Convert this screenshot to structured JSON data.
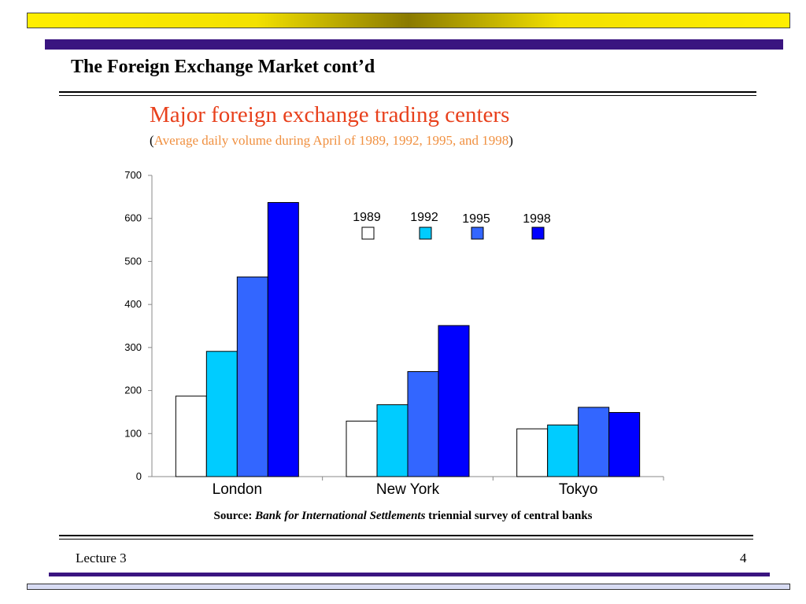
{
  "slide": {
    "title": "The Foreign Exchange Market cont’d",
    "footer_left": "Lecture 3",
    "page_number": "4"
  },
  "chart_heading": {
    "title": "Major foreign exchange trading centers",
    "subtitle_open": "(",
    "subtitle_text": "Average daily volume during April of 1989, 1992, 1995, and 1998",
    "subtitle_close": ")"
  },
  "source": {
    "prefix": "Source: ",
    "publication": "Bank for International Settlements",
    "suffix": " triennial survey of central banks"
  },
  "chart_data": {
    "type": "bar",
    "categories": [
      "London",
      "New York",
      "Tokyo"
    ],
    "series": [
      {
        "name": "1989",
        "color": "#ffffff",
        "values": [
          187,
          129,
          111
        ]
      },
      {
        "name": "1992",
        "color": "#00ccff",
        "values": [
          291,
          167,
          120
        ]
      },
      {
        "name": "1995",
        "color": "#3366ff",
        "values": [
          464,
          244,
          161
        ]
      },
      {
        "name": "1998",
        "color": "#0000ff",
        "values": [
          637,
          351,
          149
        ]
      }
    ],
    "ylim": [
      0,
      700
    ],
    "yticks": [
      0,
      100,
      200,
      300,
      400,
      500,
      600,
      700
    ],
    "xlabel": "",
    "ylabel": "",
    "grid": false,
    "legend_position": "top-right"
  }
}
